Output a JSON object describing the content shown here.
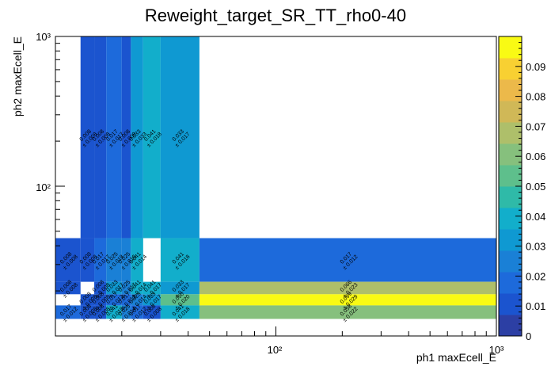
{
  "chart_data": {
    "type": "heatmap",
    "title": "Reweight_target_SR_TT_rho0-40",
    "xlabel": "ph1 maxEcell_E",
    "ylabel": "ph2 maxEcell_E",
    "x_scale": "log",
    "y_scale": "log",
    "xlim": [
      10,
      1000
    ],
    "ylim": [
      10,
      1000
    ],
    "x_tick_labels": [
      "10²",
      "10³"
    ],
    "y_tick_labels": [
      "10²",
      "10³"
    ],
    "x_edges": [
      10,
      13,
      15,
      17,
      20,
      22,
      25,
      30,
      45,
      1000
    ],
    "y_edges": [
      10,
      13,
      16,
      19,
      23,
      45,
      1000
    ],
    "zlim": [
      0,
      0.1
    ],
    "z_ticks": [
      "0",
      "0.01",
      "0.02",
      "0.03",
      "0.04",
      "0.05",
      "0.06",
      "0.07",
      "0.08",
      "0.09"
    ],
    "colors": [
      "#2c3fa4",
      "#1b54cf",
      "#1d6adb",
      "#1a80d6",
      "#0f99d2",
      "#12aecb",
      "#2fbaa8",
      "#5ebf8c",
      "#86c07d",
      "#aebf6a",
      "#d0b857",
      "#ecb94a",
      "#f8d032",
      "#f9fa14"
    ],
    "cells": [
      {
        "xi": 1,
        "yi": 5,
        "v": 0.008,
        "err": 0.008
      },
      {
        "xi": 2,
        "yi": 5,
        "v": 0.008,
        "err": 0.008
      },
      {
        "xi": 3,
        "yi": 5,
        "v": 0.017,
        "err": 0.017
      },
      {
        "xi": 4,
        "yi": 5,
        "v": 0.008,
        "err": 0.008
      },
      {
        "xi": 5,
        "yi": 5,
        "v": 0.033,
        "err": 0.033
      },
      {
        "xi": 6,
        "yi": 5,
        "v": 0.041,
        "err": 0.018
      },
      {
        "xi": 7,
        "yi": 5,
        "v": 0.033,
        "err": 0.017
      },
      {
        "xi": 0,
        "yi": 4,
        "v": 0.008,
        "err": 0.008
      },
      {
        "xi": 1,
        "yi": 4,
        "v": 0.008,
        "err": 0.008
      },
      {
        "xi": 2,
        "yi": 4,
        "v": 0.017,
        "err": 0.017
      },
      {
        "xi": 3,
        "yi": 4,
        "v": 0.025,
        "err": 0.018
      },
      {
        "xi": 4,
        "yi": 4,
        "v": 0.025,
        "err": 0.018
      },
      {
        "xi": 5,
        "yi": 4,
        "v": 0.041,
        "err": 0.014
      },
      {
        "xi": 7,
        "yi": 4,
        "v": 0.041,
        "err": 0.018
      },
      {
        "xi": 8,
        "yi": 4,
        "v": 0.017,
        "err": 0.012
      },
      {
        "xi": 0,
        "yi": 3,
        "v": 0.008,
        "err": 0.008
      },
      {
        "xi": 2,
        "yi": 3,
        "v": 0.008,
        "err": 0.008
      },
      {
        "xi": 3,
        "yi": 3,
        "v": 0.033,
        "err": 0.017
      },
      {
        "xi": 4,
        "yi": 3,
        "v": 0.025,
        "err": 0.017
      },
      {
        "xi": 5,
        "yi": 3,
        "v": 0.041,
        "err": 0.014
      },
      {
        "xi": 6,
        "yi": 3,
        "v": 0.041,
        "err": 0.017
      },
      {
        "xi": 7,
        "yi": 3,
        "v": 0.033,
        "err": 0.017
      },
      {
        "xi": 8,
        "yi": 3,
        "v": 0.066,
        "err": 0.023
      },
      {
        "xi": 1,
        "yi": 2,
        "v": 0.008,
        "err": 0.008
      },
      {
        "xi": 2,
        "yi": 2,
        "v": 0.008,
        "err": 0.008
      },
      {
        "xi": 3,
        "yi": 2,
        "v": 0.017,
        "err": 0.012
      },
      {
        "xi": 4,
        "yi": 2,
        "v": 0.017,
        "err": 0.012
      },
      {
        "xi": 5,
        "yi": 2,
        "v": 0.025,
        "err": 0.014
      },
      {
        "xi": 6,
        "yi": 2,
        "v": 0.033,
        "err": 0.017
      },
      {
        "xi": 7,
        "yi": 2,
        "v": 0.05,
        "err": 0.02
      },
      {
        "xi": 8,
        "yi": 2,
        "v": 0.099,
        "err": 0.029
      },
      {
        "xi": 0,
        "yi": 1,
        "v": 0.017,
        "err": 0.012
      },
      {
        "xi": 1,
        "yi": 1,
        "v": 0.008,
        "err": 0.008
      },
      {
        "xi": 2,
        "yi": 1,
        "v": 0.008,
        "err": 0.008
      },
      {
        "xi": 3,
        "yi": 1,
        "v": 0.041,
        "err": 0.018
      },
      {
        "xi": 4,
        "yi": 1,
        "v": 0.025,
        "err": 0.014
      },
      {
        "xi": 5,
        "yi": 1,
        "v": 0.017,
        "err": 0.012
      },
      {
        "xi": 6,
        "yi": 1,
        "v": 0.008,
        "err": 0.008
      },
      {
        "xi": 7,
        "yi": 1,
        "v": 0.041,
        "err": 0.018
      },
      {
        "xi": 8,
        "yi": 1,
        "v": 0.058,
        "err": 0.022
      }
    ]
  }
}
